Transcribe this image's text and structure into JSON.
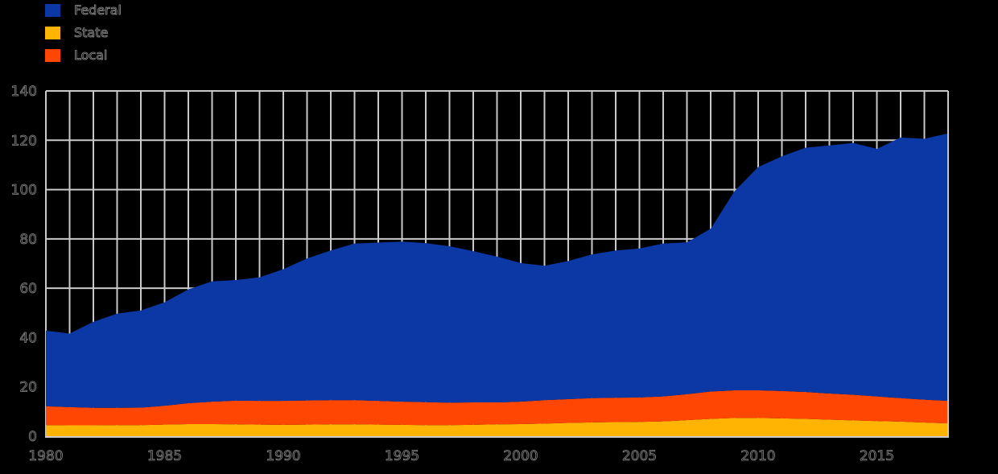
{
  "legend": {
    "items": [
      {
        "label": "Federal",
        "color": "#0B38A4"
      },
      {
        "label": "State",
        "color": "#FFB404"
      },
      {
        "label": "Local",
        "color": "#FF4703"
      }
    ]
  },
  "chart_data": {
    "type": "area",
    "stacked": true,
    "title": "",
    "xlabel": "",
    "ylabel": "",
    "background_color": "#000000",
    "gridline_color": "#C9C9C9",
    "grid": "vertical line every year, horizontal line every 20 units",
    "legend_position": "top-left",
    "xlim": [
      1980,
      2018
    ],
    "ylim": [
      0,
      140
    ],
    "x_ticks": [
      1980,
      1985,
      1990,
      1995,
      2000,
      2005,
      2010,
      2015
    ],
    "y_ticks": [
      0,
      20,
      40,
      60,
      80,
      100,
      120,
      140
    ],
    "x": [
      1980,
      1981,
      1982,
      1983,
      1984,
      1985,
      1986,
      1987,
      1988,
      1989,
      1990,
      1991,
      1992,
      1993,
      1994,
      1995,
      1996,
      1997,
      1998,
      1999,
      2000,
      2001,
      2002,
      2003,
      2004,
      2005,
      2006,
      2007,
      2008,
      2009,
      2010,
      2011,
      2012,
      2013,
      2014,
      2015,
      2016,
      2017,
      2018
    ],
    "stack_order_bottom_to_top": [
      "State",
      "Local",
      "Federal"
    ],
    "series": [
      {
        "name": "State",
        "color": "#FFB404",
        "values": [
          4.5,
          4.4,
          4.4,
          4.5,
          4.5,
          4.7,
          4.9,
          4.9,
          4.8,
          4.7,
          4.6,
          4.7,
          4.8,
          4.8,
          4.7,
          4.6,
          4.5,
          4.5,
          4.6,
          4.8,
          4.9,
          5.1,
          5.4,
          5.6,
          5.7,
          5.8,
          6.0,
          6.5,
          7.0,
          7.4,
          7.4,
          7.2,
          7.0,
          6.7,
          6.4,
          6.1,
          5.9,
          5.5,
          5.2
        ]
      },
      {
        "name": "Local",
        "color": "#FF4703",
        "values": [
          7.6,
          7.4,
          7.1,
          7.0,
          7.1,
          7.6,
          8.5,
          9.1,
          9.6,
          9.6,
          9.7,
          9.8,
          9.8,
          9.8,
          9.6,
          9.4,
          9.3,
          9.1,
          9.1,
          8.9,
          9.1,
          9.5,
          9.6,
          9.8,
          9.9,
          9.9,
          10.1,
          10.5,
          11.1,
          11.2,
          11.2,
          11.1,
          10.9,
          10.6,
          10.4,
          10.0,
          9.5,
          9.3,
          9.1
        ]
      },
      {
        "name": "Federal",
        "color": "#0B38A4",
        "values": [
          30.7,
          29.8,
          34.9,
          38.2,
          39.4,
          42.0,
          46.1,
          48.8,
          48.9,
          50.1,
          53.4,
          57.6,
          60.7,
          63.5,
          64.2,
          64.9,
          64.5,
          63.4,
          61.3,
          59.1,
          56.2,
          54.5,
          56.0,
          58.3,
          59.7,
          60.4,
          62.0,
          61.6,
          66.0,
          80.7,
          90.5,
          95.2,
          99.1,
          100.6,
          102.1,
          100.4,
          105.7,
          105.8,
          108.5
        ]
      }
    ],
    "totals_reference": [
      42.8,
      41.6,
      46.4,
      49.7,
      51.0,
      54.3,
      59.5,
      62.8,
      63.3,
      64.4,
      67.7,
      72.1,
      75.3,
      78.1,
      78.5,
      78.9,
      78.3,
      77.0,
      75.0,
      72.8,
      70.2,
      69.1,
      71.0,
      73.7,
      75.3,
      76.1,
      78.1,
      78.6,
      84.1,
      99.3,
      109.1,
      113.5,
      117.0,
      117.9,
      118.9,
      116.5,
      121.1,
      120.6,
      122.8
    ]
  }
}
